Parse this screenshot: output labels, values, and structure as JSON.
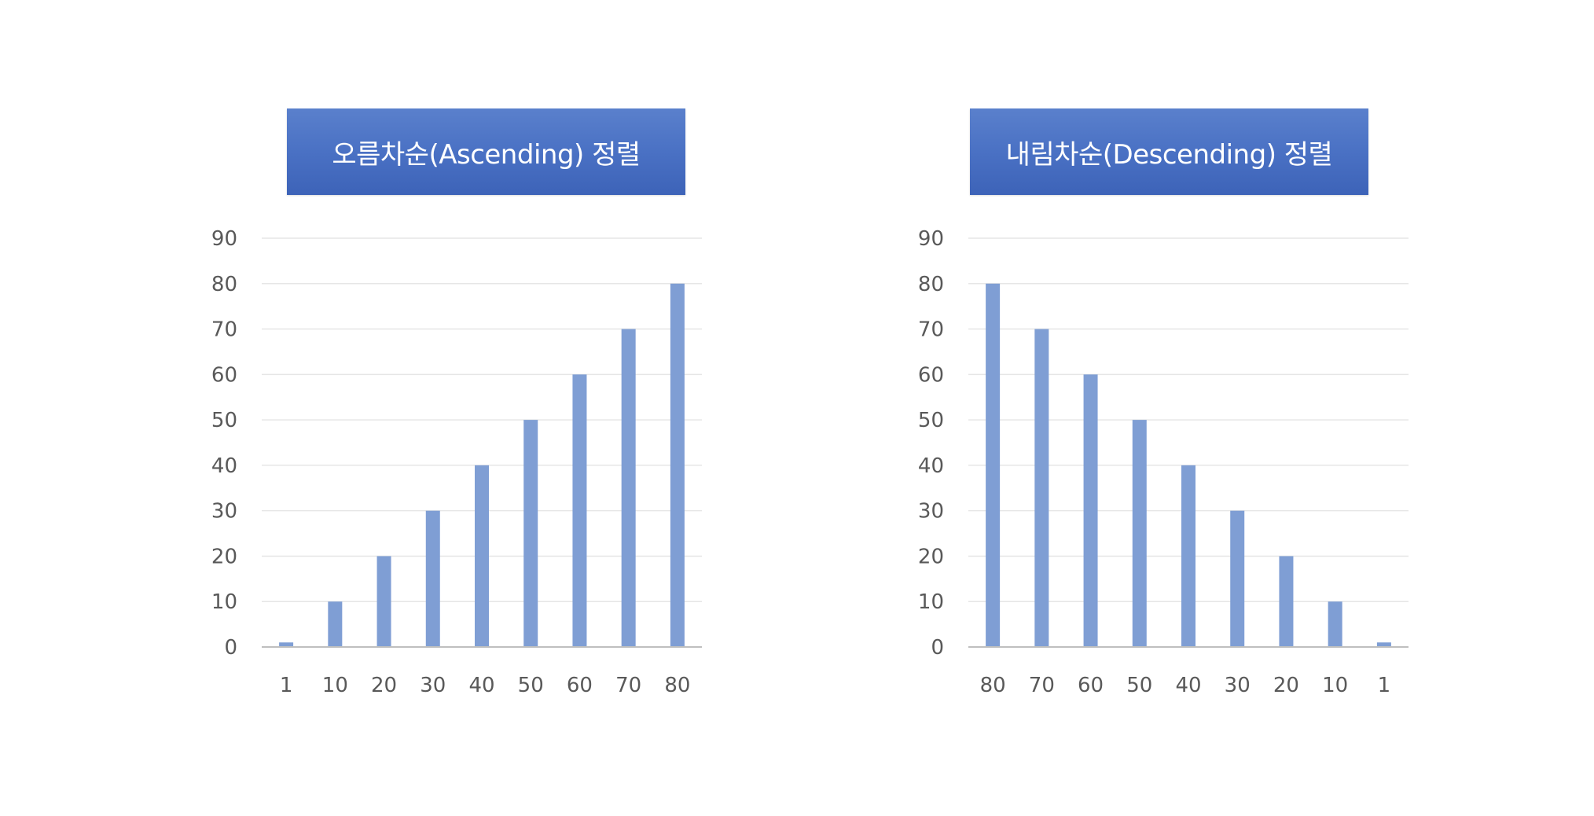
{
  "chart_data": [
    {
      "type": "bar",
      "title": "오름차순(Ascending) 정렬",
      "categories": [
        "1",
        "10",
        "20",
        "30",
        "40",
        "50",
        "60",
        "70",
        "80"
      ],
      "values": [
        1,
        10,
        20,
        30,
        40,
        50,
        60,
        70,
        80
      ],
      "ylim": [
        0,
        90
      ],
      "yticks": [
        0,
        10,
        20,
        30,
        40,
        50,
        60,
        70,
        80,
        90
      ],
      "grid": true,
      "bar_color": "#7f9ed4"
    },
    {
      "type": "bar",
      "title": "내림차순(Descending) 정렬",
      "categories": [
        "80",
        "70",
        "60",
        "50",
        "40",
        "30",
        "20",
        "10",
        "1"
      ],
      "values": [
        80,
        70,
        60,
        50,
        40,
        30,
        20,
        10,
        1
      ],
      "ylim": [
        0,
        90
      ],
      "yticks": [
        0,
        10,
        20,
        30,
        40,
        50,
        60,
        70,
        80,
        90
      ],
      "grid": true,
      "bar_color": "#7f9ed4"
    }
  ],
  "colors": {
    "banner": "#4a71c4",
    "bar": "#7f9ed4",
    "gridline": "#e6e6e6",
    "axis": "#bfbfbf",
    "tick_text": "#595959"
  }
}
